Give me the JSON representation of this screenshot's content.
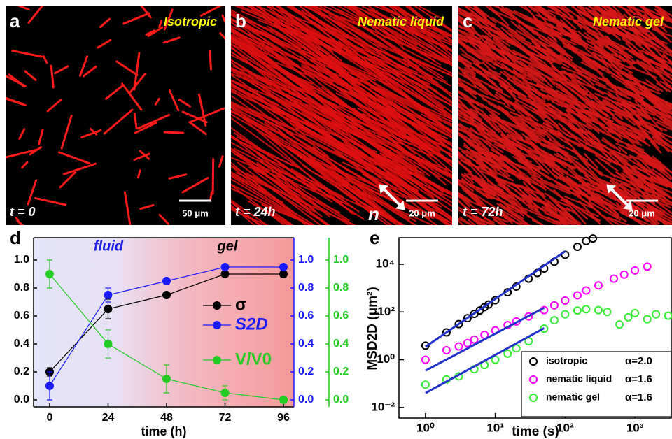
{
  "panels": [
    {
      "letter": "a",
      "title": "Isotropic",
      "time": "t = 0",
      "scale": "50 μm"
    },
    {
      "letter": "b",
      "title": "Nematic liquid",
      "time": "t = 24h",
      "scale": "20 μm",
      "director": "n"
    },
    {
      "letter": "c",
      "title": "Nematic gel",
      "time": "t = 72h",
      "scale": "20 μm"
    }
  ],
  "chart_data": [
    {
      "type": "line",
      "panel_label": "d",
      "xlabel": "time (h)",
      "x": [
        0,
        24,
        48,
        72,
        96
      ],
      "xlim": [
        -6.6,
        100.3
      ],
      "xticks": [
        0,
        24,
        48,
        72,
        96
      ],
      "ylim": [
        -0.05,
        1.16
      ],
      "yticks": [
        {
          "value": 0,
          "label": "0.0"
        },
        {
          "value": 0.2,
          "label": "0.2"
        },
        {
          "value": 0.4,
          "label": "0.4"
        },
        {
          "value": 0.6,
          "label": "0.6"
        },
        {
          "value": 0.8,
          "label": "0.8"
        },
        {
          "value": 1,
          "label": "1.0"
        }
      ],
      "y2lim": [
        -0.05,
        1.16
      ],
      "y2ticks": [
        {
          "value": 0,
          "label": "0.0"
        },
        {
          "value": 0.2,
          "label": "0.2"
        },
        {
          "value": 0.4,
          "label": "0.4"
        },
        {
          "value": 0.6,
          "label": "0.6"
        },
        {
          "value": 0.8,
          "label": "0.8"
        },
        {
          "value": 1,
          "label": "1.0"
        }
      ],
      "y3lim": [
        -0.05,
        1.16
      ],
      "y3ticks": [
        {
          "value": 0,
          "label": "0.0"
        },
        {
          "value": 0.2,
          "label": "0.2"
        },
        {
          "value": 0.4,
          "label": "0.4"
        },
        {
          "value": 0.6,
          "label": "0.6"
        },
        {
          "value": 0.8,
          "label": "0.8"
        },
        {
          "value": 1,
          "label": "1.0"
        }
      ],
      "annotations": [
        "fluid",
        "gel"
      ],
      "series": [
        {
          "name": "σ",
          "color": "#000000",
          "values": [
            0.2,
            0.65,
            0.75,
            0.9,
            0.9
          ],
          "errors": [
            0.03,
            0.07,
            0.02,
            0.02,
            0.02
          ]
        },
        {
          "name": "S2D",
          "color": "#1a1aff",
          "axis": "y2",
          "values": [
            0.1,
            0.75,
            0.85,
            0.95,
            0.95
          ],
          "errors": [
            0.1,
            0.05,
            0.02,
            0.02,
            0.02
          ]
        },
        {
          "name": "V/V0",
          "color": "#22cc22",
          "axis": "y3",
          "values": [
            0.9,
            0.4,
            0.15,
            0.05,
            0.0
          ],
          "errors": [
            0.1,
            0.1,
            0.1,
            0.05,
            0.01
          ]
        }
      ]
    },
    {
      "type": "scatter",
      "panel_label": "e",
      "xlabel": "time (s)",
      "ylabel": "MSD2D (μm²)",
      "xlog": true,
      "ylog": true,
      "xlim": [
        0.417,
        3311
      ],
      "ylim": [
        0.0036,
        130000
      ],
      "xticks": [
        {
          "value": 1,
          "label": "10⁰"
        },
        {
          "value": 10,
          "label": "10¹"
        },
        {
          "value": 100,
          "label": "10²"
        },
        {
          "value": 1000,
          "label": "10³"
        }
      ],
      "yticks": [
        {
          "value": 0.01,
          "label": "10⁻²"
        },
        {
          "value": 1,
          "label": "10⁰"
        },
        {
          "value": 100,
          "label": "10²"
        },
        {
          "value": 10000,
          "label": "10⁴"
        }
      ],
      "series": [
        {
          "name": "isotropic",
          "legend_note": "α=2.0",
          "color": "#000000",
          "x": [
            1,
            2,
            3,
            4,
            5,
            6,
            7,
            8,
            10,
            15,
            20,
            30,
            40,
            50,
            70,
            100,
            150,
            200,
            250
          ],
          "values": [
            3.9,
            14,
            31,
            55,
            83,
            116,
            160,
            206,
            310,
            670,
            1160,
            2500,
            4300,
            6700,
            12800,
            25000,
            54000,
            94000,
            120000
          ]
        },
        {
          "name": "nematic liquid",
          "legend_note": "α=1.6",
          "color": "#ff00ff",
          "x": [
            1,
            2,
            3,
            4,
            5,
            7,
            10,
            15,
            20,
            30,
            50,
            70,
            100,
            150,
            200,
            300,
            500,
            700,
            1000,
            1500
          ],
          "values": [
            1,
            2.5,
            3.6,
            5,
            7,
            11,
            17,
            28,
            40,
            65,
            120,
            190,
            300,
            500,
            800,
            1300,
            2500,
            3700,
            5500,
            8000
          ]
        },
        {
          "name": "nematic gel",
          "legend_note": "α=1.6",
          "color": "#33ee33",
          "x": [
            1,
            2,
            3,
            5,
            7,
            10,
            15,
            20,
            30,
            50,
            70,
            100,
            150,
            200,
            300,
            400,
            600,
            800,
            1000,
            1500,
            2000,
            3000
          ],
          "values": [
            0.09,
            0.15,
            0.2,
            0.4,
            0.6,
            1,
            1.8,
            3,
            6,
            20,
            45,
            80,
            115,
            130,
            120,
            100,
            30,
            60,
            90,
            50,
            80,
            70
          ]
        }
      ],
      "fits": [
        {
          "color": "#2233cc",
          "x": [
            1,
            100
          ],
          "values": [
            3.5,
            35000
          ]
        },
        {
          "color": "#2233cc",
          "x": [
            1,
            50
          ],
          "values": [
            0.35,
            150
          ]
        },
        {
          "color": "#2233cc",
          "x": [
            1,
            50
          ],
          "values": [
            0.04,
            21
          ]
        }
      ]
    }
  ]
}
